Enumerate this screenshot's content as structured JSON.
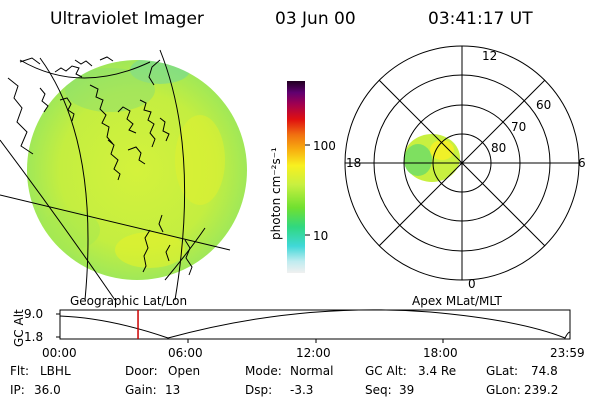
{
  "header": {
    "title": "Ultraviolet Imager",
    "date": "03 Jun 00",
    "time": "03:41:17 UT"
  },
  "colorbar": {
    "unit_label": "photon cm⁻²s⁻¹",
    "ticks": [
      "100",
      "10"
    ]
  },
  "polar": {
    "labels": [
      "12",
      "60",
      "70",
      "80",
      "18",
      "6",
      "0"
    ]
  },
  "projections": {
    "left": "Geographic Lat/Lon",
    "right": "Apex MLat/MLT"
  },
  "altitude_plot": {
    "ylabel": "GC Alt",
    "y_ticks": [
      "9.0",
      "1.8"
    ],
    "time_ticks": [
      "00:00",
      "06:00",
      "12:00",
      "18:00",
      "23:59"
    ],
    "current_time_fraction": 0.153
  },
  "info": {
    "flt_label": "Flt:",
    "flt_value": "LBHL",
    "ip_label": "IP:",
    "ip_value": "36.0",
    "door_label": "Door:",
    "door_value": "Open",
    "gain_label": "Gain:",
    "gain_value": "13",
    "mode_label": "Mode:",
    "mode_value": "Normal",
    "dsp_label": "Dsp:",
    "dsp_value": "-3.3",
    "gcalt_label": "GC Alt:",
    "gcalt_value": "3.4 Re",
    "seq_label": "Seq:",
    "seq_value": "39",
    "glat_label": "GLat:",
    "glat_value": "74.8",
    "glon_label": "GLon:",
    "glon_value": "239.2"
  },
  "colors": {
    "disk_fill": "#c8f040",
    "cursor_line": "#cc0000"
  }
}
